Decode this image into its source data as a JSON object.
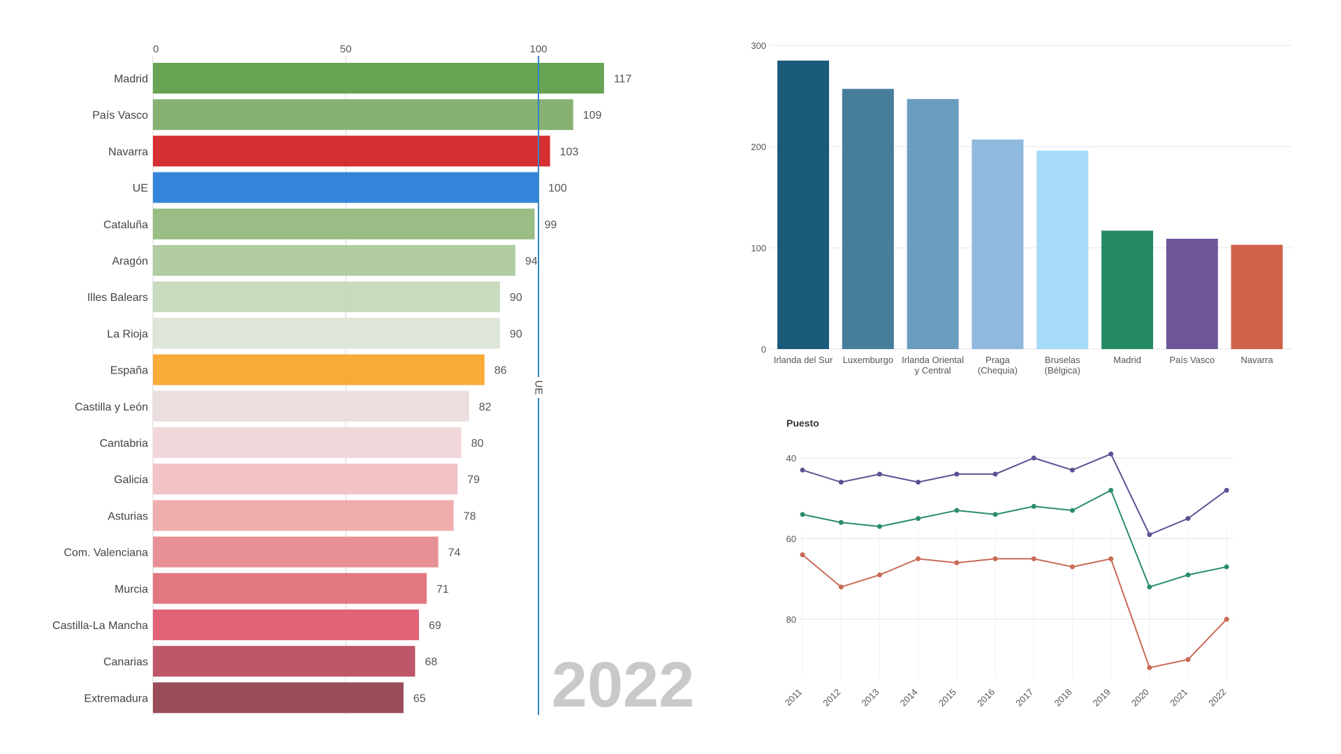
{
  "chart_data": [
    {
      "type": "bar",
      "orientation": "horizontal",
      "categories": [
        "Madrid",
        "País Vasco",
        "Navarra",
        "UE",
        "Cataluña",
        "Aragón",
        "Illes Balears",
        "La Rioja",
        "España",
        "Castilla y León",
        "Cantabria",
        "Galicia",
        "Asturias",
        "Com. Valenciana",
        "Murcia",
        "Castilla-La Mancha",
        "Canarias",
        "Extremadura"
      ],
      "values": [
        117,
        109,
        103,
        100,
        99,
        94,
        90,
        90,
        86,
        82,
        80,
        79,
        78,
        74,
        71,
        69,
        68,
        65
      ],
      "colors": [
        "#5f9e49",
        "#80ad6b",
        "#d42426",
        "#2a7fd8",
        "#93b97e",
        "#adc99c",
        "#c5d9bc",
        "#dbe5d6",
        "#f9a62e",
        "#eadcdd",
        "#f0d5d8",
        "#f0bfc3",
        "#eeaaaa",
        "#e68a8f",
        "#e07078",
        "#de5b71",
        "#bb4e5f",
        "#94434f"
      ],
      "xticks": [
        0,
        50,
        100
      ],
      "xlim": [
        0,
        117
      ],
      "reference_line": {
        "value": 100,
        "label": "UE",
        "color": "#2f86c6"
      },
      "year_label": "2022",
      "grid": true
    },
    {
      "type": "bar",
      "categories": [
        [
          "Irlanda del Sur"
        ],
        [
          "Luxemburgo"
        ],
        [
          "Irlanda Oriental",
          "y Central"
        ],
        [
          "Praga",
          "(Chequia)"
        ],
        [
          "Bruselas",
          "(Bélgica)"
        ],
        [
          "Madrid"
        ],
        [
          "País Vasco"
        ],
        [
          "Navarra"
        ]
      ],
      "values": [
        285,
        257,
        247,
        207,
        196,
        117,
        109,
        103
      ],
      "colors": [
        "#1a5a7a",
        "#457d9a",
        "#6b9dbf",
        "#8fbadd",
        "#a7daf9",
        "#268b64",
        "#6e5699",
        "#d0614b"
      ],
      "yticks": [
        0,
        100,
        200,
        300
      ],
      "ylim": [
        0,
        300
      ],
      "grid": true
    },
    {
      "type": "line",
      "ylabel": "Puesto",
      "x": [
        "2011",
        "2012",
        "2013",
        "2014",
        "2015",
        "2016",
        "2017",
        "2018",
        "2019",
        "2020",
        "2021",
        "2022"
      ],
      "yticks": [
        40,
        60,
        80
      ],
      "ylim": [
        40,
        92
      ],
      "y_inverted": true,
      "grid": true,
      "series": [
        {
          "color": "#5b5294",
          "values": [
            43,
            46,
            44,
            46,
            44,
            44,
            40,
            43,
            39,
            59,
            55,
            48
          ]
        },
        {
          "color": "#2a8c67",
          "values": [
            54,
            56,
            57,
            55,
            53,
            54,
            52,
            53,
            48,
            72,
            69,
            67
          ]
        },
        {
          "color": "#c86a55",
          "values": [
            64,
            72,
            69,
            65,
            66,
            65,
            65,
            67,
            65,
            92,
            90,
            80
          ]
        }
      ]
    }
  ]
}
